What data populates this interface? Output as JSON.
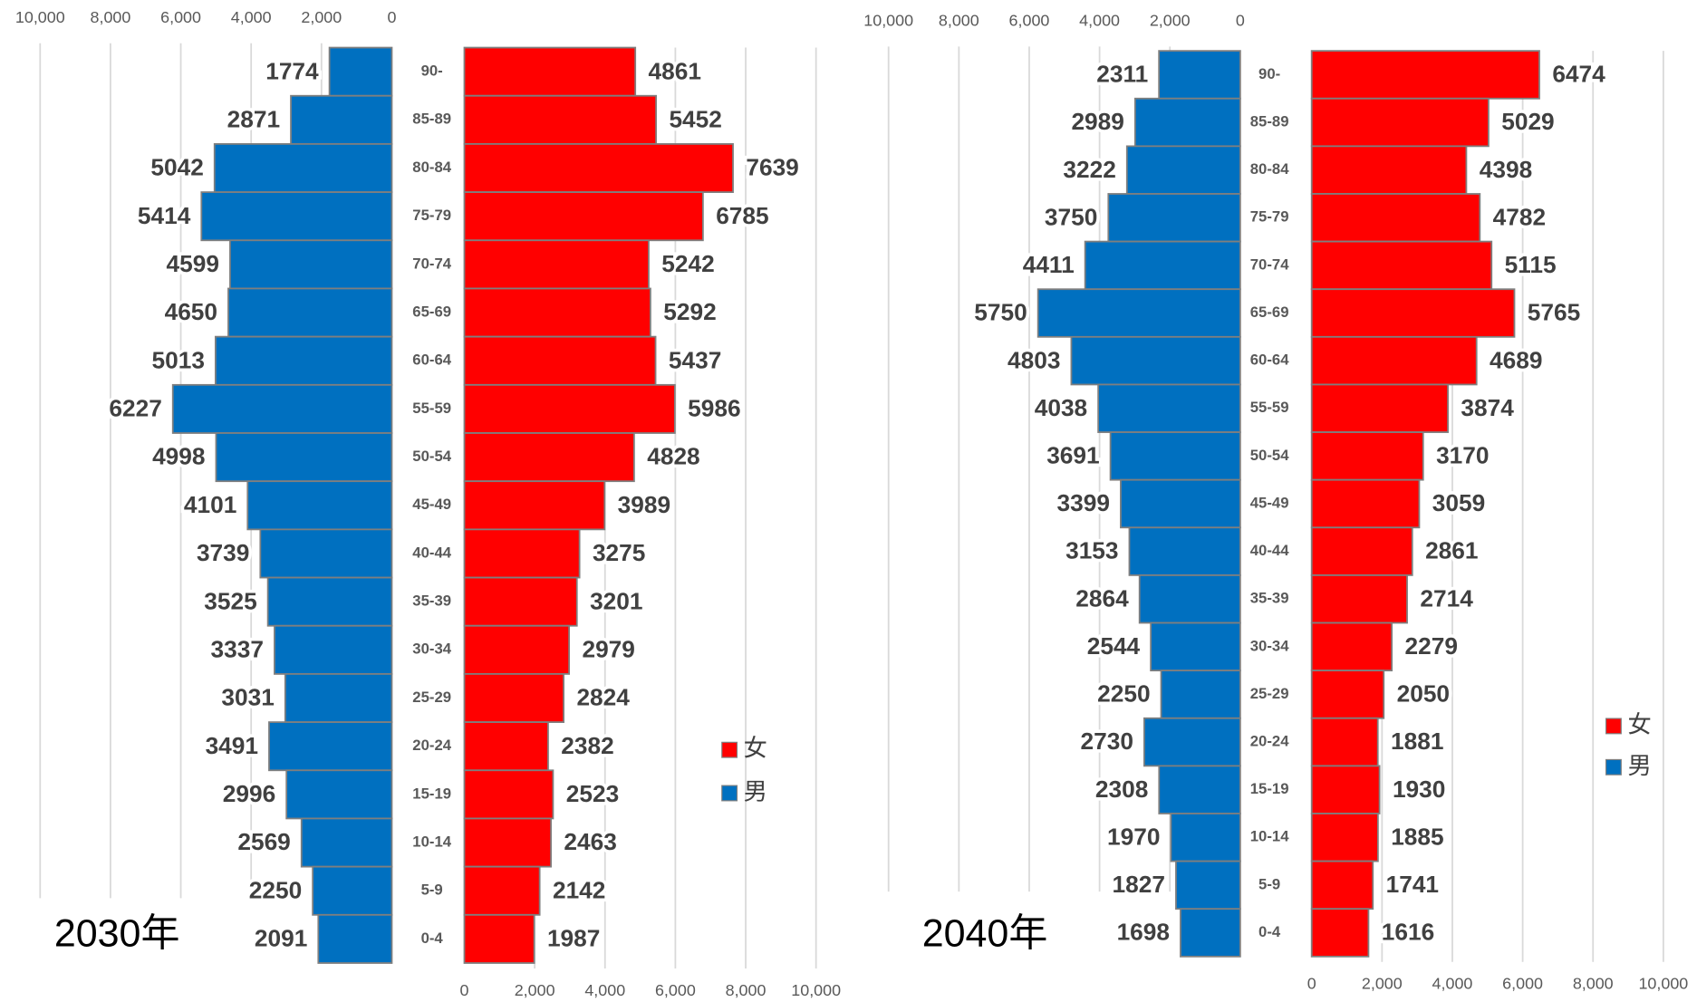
{
  "chart_data": [
    {
      "type": "pyramid",
      "title": "2030年",
      "categories": [
        "90-",
        "85-89",
        "80-84",
        "75-79",
        "70-74",
        "65-69",
        "60-64",
        "55-59",
        "50-54",
        "45-49",
        "40-44",
        "35-39",
        "30-34",
        "25-29",
        "20-24",
        "15-19",
        "10-14",
        "5-9",
        "0-4"
      ],
      "series": [
        {
          "name": "女",
          "color": "#ff0000",
          "values": [
            4861,
            5452,
            7639,
            6785,
            5242,
            5292,
            5437,
            5986,
            4828,
            3989,
            3275,
            3201,
            2979,
            2824,
            2382,
            2523,
            2463,
            2142,
            1987
          ]
        },
        {
          "name": "男",
          "color": "#0070c0",
          "values": [
            1774,
            2871,
            5042,
            5414,
            4599,
            4650,
            5013,
            6227,
            4998,
            4101,
            3739,
            3525,
            3337,
            3031,
            3491,
            2996,
            2569,
            2250,
            2091
          ]
        }
      ],
      "xlim": [
        0,
        10000
      ],
      "xticks": [
        0,
        {
          "value": 2000,
          "label": "2,000"
        },
        {
          "value": 4000,
          "label": "4,000"
        },
        {
          "value": 6000,
          "label": "6,000"
        },
        {
          "value": 8000,
          "label": "8,000"
        },
        {
          "value": 10000,
          "label": "10,000"
        }
      ],
      "grid": true
    },
    {
      "type": "pyramid",
      "title": "2040年",
      "categories": [
        "90-",
        "85-89",
        "80-84",
        "75-79",
        "70-74",
        "65-69",
        "60-64",
        "55-59",
        "50-54",
        "45-49",
        "40-44",
        "35-39",
        "30-34",
        "25-29",
        "20-24",
        "15-19",
        "10-14",
        "5-9",
        "0-4"
      ],
      "series": [
        {
          "name": "女",
          "color": "#ff0000",
          "values": [
            6474,
            5029,
            4398,
            4782,
            5115,
            5765,
            4689,
            3874,
            3170,
            3059,
            2861,
            2714,
            2279,
            2050,
            1881,
            1930,
            1885,
            1741,
            1616
          ]
        },
        {
          "name": "男",
          "color": "#0070c0",
          "values": [
            2311,
            2989,
            3222,
            3750,
            4411,
            5750,
            4803,
            4038,
            3691,
            3399,
            3153,
            2864,
            2544,
            2250,
            2730,
            2308,
            1970,
            1827,
            1698
          ]
        }
      ],
      "xlim": [
        0,
        10000
      ],
      "xticks": [
        0,
        {
          "value": 2000,
          "label": "2,000"
        },
        {
          "value": 4000,
          "label": "4,000"
        },
        {
          "value": 6000,
          "label": "6,000"
        },
        {
          "value": 8000,
          "label": "8,000"
        },
        {
          "value": 10000,
          "label": "10,000"
        }
      ],
      "grid": true
    }
  ]
}
